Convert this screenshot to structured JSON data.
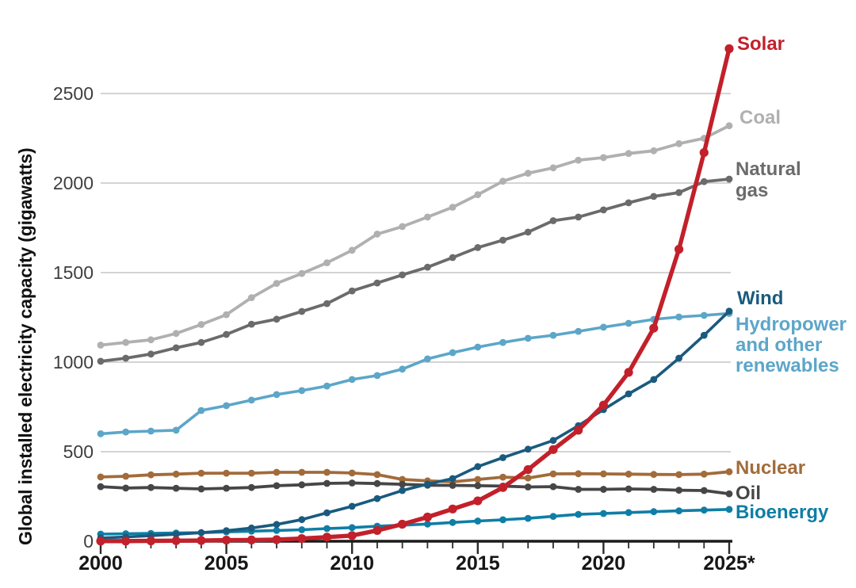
{
  "chart_data": {
    "type": "line",
    "title": "",
    "ylabel": "Global installed electricity capacity (gigawatts)",
    "unit": "gigawatts",
    "x": [
      2000,
      2001,
      2002,
      2003,
      2004,
      2005,
      2006,
      2007,
      2008,
      2009,
      2010,
      2011,
      2012,
      2013,
      2014,
      2015,
      2016,
      2017,
      2018,
      2019,
      2020,
      2021,
      2022,
      2023,
      2024,
      2025
    ],
    "x_tick_years": [
      2000,
      2005,
      2010,
      2015,
      2020,
      2025
    ],
    "x_tick_labels": [
      "2000",
      "2005",
      "2010",
      "2015",
      "2020",
      "2025*"
    ],
    "y_ticks": [
      0,
      500,
      1000,
      1500,
      2000,
      2500
    ],
    "ylim": [
      0,
      2800
    ],
    "grid": "horizontal",
    "legend_position": "right-of-line-ends",
    "axis_color": "#1a1a1a",
    "gridline_color": "#c6c6c6",
    "series": [
      {
        "name": "Solar",
        "color": "#c2202a",
        "z": 8,
        "line_width": 5.4,
        "marker_r": 5.6,
        "label_lines": [
          "Solar"
        ],
        "values": [
          1,
          1,
          2,
          3,
          4,
          6,
          7,
          9,
          15,
          23,
          32,
          60,
          95,
          135,
          180,
          225,
          300,
          400,
          512,
          620,
          760,
          943,
          1190,
          1630,
          2170,
          2750
        ]
      },
      {
        "name": "Coal",
        "color": "#b0b0b2",
        "z": 1,
        "line_width": 3.8,
        "marker_r": 4.4,
        "label_lines": [
          "Coal"
        ],
        "values": [
          1095,
          1110,
          1125,
          1160,
          1210,
          1265,
          1360,
          1440,
          1495,
          1555,
          1625,
          1715,
          1757,
          1810,
          1865,
          1935,
          2010,
          2055,
          2085,
          2128,
          2142,
          2165,
          2180,
          2220,
          2250,
          2320
        ]
      },
      {
        "name": "Natural gas",
        "color": "#6b6b6d",
        "z": 2,
        "line_width": 3.8,
        "marker_r": 4.4,
        "label_lines": [
          "Natural",
          "gas"
        ],
        "values": [
          1005,
          1022,
          1045,
          1080,
          1110,
          1155,
          1212,
          1240,
          1283,
          1327,
          1398,
          1442,
          1487,
          1530,
          1584,
          1640,
          1681,
          1726,
          1790,
          1810,
          1850,
          1890,
          1925,
          1947,
          2008,
          2022
        ]
      },
      {
        "name": "Wind",
        "color": "#1a5a7e",
        "z": 7,
        "line_width": 3.6,
        "marker_r": 4.4,
        "label_lines": [
          "Wind"
        ],
        "values": [
          18,
          24,
          31,
          39,
          48,
          59,
          74,
          94,
          121,
          159,
          195,
          238,
          283,
          319,
          350,
          417,
          467,
          514,
          563,
          645,
          735,
          823,
          903,
          1022,
          1150,
          1285
        ]
      },
      {
        "name": "Hydropower and other renewables",
        "color": "#5ca6c9",
        "z": 3,
        "line_width": 3.6,
        "marker_r": 4.4,
        "label_lines": [
          "Hydropower",
          "and other",
          "renewables"
        ],
        "values": [
          600,
          610,
          615,
          620,
          730,
          757,
          788,
          819,
          841,
          867,
          903,
          925,
          961,
          1018,
          1053,
          1084,
          1110,
          1133,
          1150,
          1172,
          1195,
          1217,
          1239,
          1252,
          1261,
          1272
        ]
      },
      {
        "name": "Nuclear",
        "color": "#a26b3a",
        "z": 4,
        "line_width": 3.8,
        "marker_r": 4.4,
        "label_lines": [
          "Nuclear"
        ],
        "values": [
          359,
          363,
          371,
          375,
          380,
          380,
          380,
          385,
          385,
          385,
          381,
          372,
          345,
          337,
          332,
          345,
          358,
          353,
          376,
          377,
          376,
          375,
          373,
          372,
          375,
          388
        ]
      },
      {
        "name": "Oil",
        "color": "#464648",
        "z": 5,
        "line_width": 3.8,
        "marker_r": 4.4,
        "label_lines": [
          "Oil"
        ],
        "values": [
          305,
          297,
          300,
          296,
          292,
          296,
          300,
          310,
          315,
          323,
          325,
          322,
          318,
          313,
          312,
          310,
          308,
          303,
          305,
          290,
          290,
          292,
          290,
          285,
          283,
          265
        ]
      },
      {
        "name": "Bioenergy",
        "color": "#0f7ea6",
        "z": 6,
        "line_width": 3.6,
        "marker_r": 4.4,
        "label_lines": [
          "Bioenergy"
        ],
        "values": [
          40,
          42,
          44,
          46,
          48,
          52,
          56,
          60,
          64,
          71,
          76,
          84,
          90,
          96,
          105,
          113,
          120,
          128,
          139,
          150,
          155,
          160,
          165,
          170,
          174,
          178
        ]
      }
    ]
  }
}
